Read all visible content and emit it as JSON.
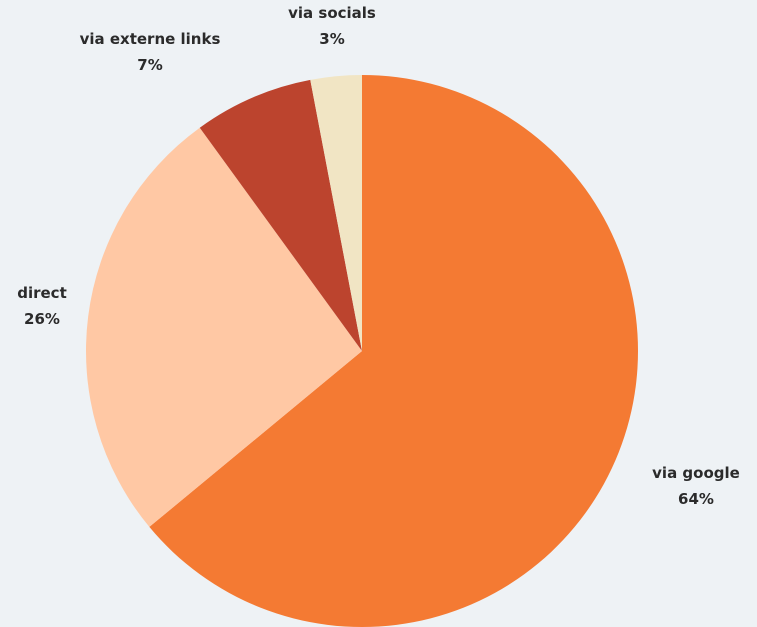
{
  "chart_data": {
    "type": "pie",
    "title": "",
    "slices": [
      {
        "label": "via google",
        "value": 64,
        "value_label": "64%",
        "color": "#f47a33"
      },
      {
        "label": "direct",
        "value": 26,
        "value_label": "26%",
        "color": "#ffc8a4"
      },
      {
        "label": "via externe links",
        "value": 7,
        "value_label": "7%",
        "color": "#bc442e"
      },
      {
        "label": "via socials",
        "value": 3,
        "value_label": "3%",
        "color": "#f1e5c4"
      }
    ],
    "start_angle": "12 o'clock",
    "direction": "clockwise",
    "legend": "none",
    "background": "#eef2f5"
  }
}
